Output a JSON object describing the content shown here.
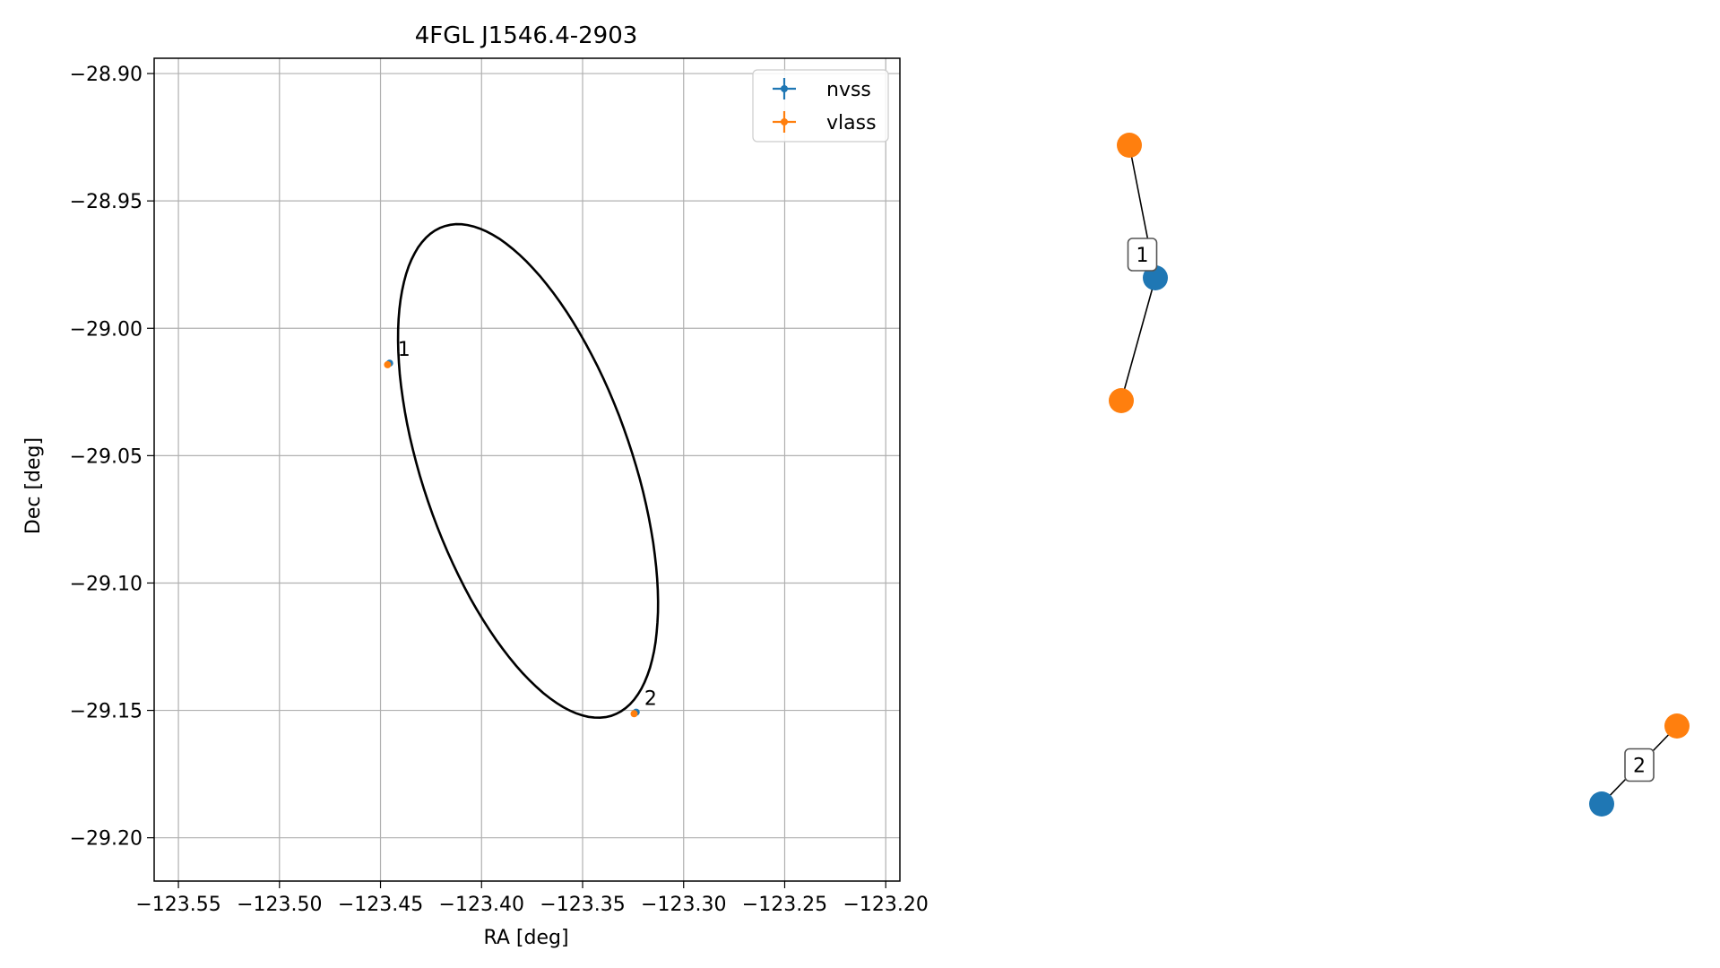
{
  "chart_data": [
    {
      "type": "scatter",
      "title": "4FGL J1546.4-2903",
      "xlabel": "RA [deg]",
      "ylabel": "Dec [deg]",
      "xlim": [
        -123.562,
        -123.193
      ],
      "ylim": [
        -29.217,
        -28.894
      ],
      "x_ticks": [
        -123.55,
        -123.5,
        -123.45,
        -123.4,
        -123.35,
        -123.3,
        -123.25,
        -123.2
      ],
      "x_tick_labels": [
        "−123.55",
        "−123.50",
        "−123.45",
        "−123.40",
        "−123.35",
        "−123.30",
        "−123.25",
        "−123.20"
      ],
      "y_ticks": [
        -28.9,
        -28.95,
        -29.0,
        -29.05,
        -29.1,
        -29.15,
        -29.2
      ],
      "y_tick_labels": [
        "−28.90",
        "−28.95",
        "−29.00",
        "−29.05",
        "−29.10",
        "−29.15",
        "−29.20"
      ],
      "grid": true,
      "legend_position": "top-right",
      "series": [
        {
          "name": "nvss",
          "color": "#1f77b4",
          "points": [
            {
              "x": -123.4455,
              "y": -29.0137
            },
            {
              "x": -123.3235,
              "y": -29.1507
            }
          ]
        },
        {
          "name": "vlass",
          "color": "#ff7f0e",
          "points": [
            {
              "x": -123.4465,
              "y": -29.0143
            },
            {
              "x": -123.3245,
              "y": -29.1513
            }
          ]
        }
      ],
      "annotations": [
        {
          "text": "1",
          "x": -123.445,
          "y": -29.0137
        },
        {
          "text": "2",
          "x": -123.323,
          "y": -29.1507
        }
      ],
      "ellipse": {
        "center": [
          -123.377,
          -29.056
        ],
        "rx": 0.05,
        "ry": 0.105,
        "angle_deg": 26,
        "color": "#000000"
      }
    },
    {
      "type": "network",
      "edges": [
        [
          0,
          1
        ],
        [
          0,
          2
        ],
        [
          3,
          4
        ]
      ],
      "nodes": [
        {
          "id": 0,
          "group": "nvss",
          "color": "#1f77b4"
        },
        {
          "id": 1,
          "group": "vlass",
          "color": "#ff7f0e"
        },
        {
          "id": 2,
          "group": "vlass",
          "color": "#ff7f0e"
        },
        {
          "id": 3,
          "group": "nvss",
          "color": "#1f77b4"
        },
        {
          "id": 4,
          "group": "vlass",
          "color": "#ff7f0e"
        }
      ],
      "labels": [
        {
          "text": "1",
          "between": [
            0,
            1
          ]
        },
        {
          "text": "2",
          "between": [
            3,
            4
          ]
        }
      ]
    }
  ]
}
